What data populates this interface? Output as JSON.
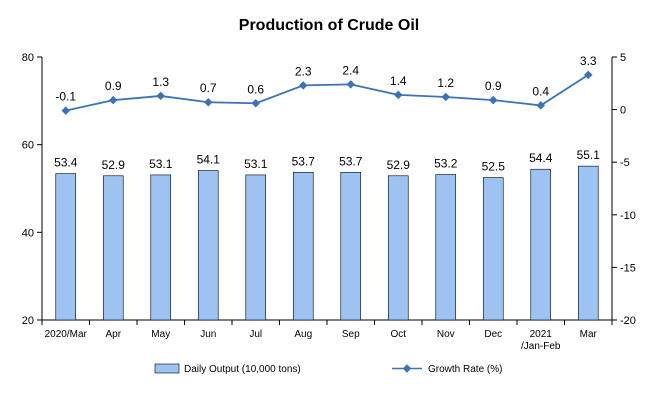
{
  "chart_data": {
    "type": "bar",
    "title": "Production of Crude Oil",
    "categories": [
      "2020/Mar",
      "Apr",
      "May",
      "Jun",
      "Jul",
      "Aug",
      "Sep",
      "Oct",
      "Nov",
      "Dec",
      "2021 /Jan-Feb",
      "Mar"
    ],
    "series": [
      {
        "name": "Daily Output (10,000 tons)",
        "type": "bar",
        "axis": "left",
        "color": "#9cc3f2",
        "values": [
          53.4,
          52.9,
          53.1,
          54.1,
          53.1,
          53.7,
          53.7,
          52.9,
          53.2,
          52.5,
          54.4,
          55.1
        ],
        "labels": [
          "53.4",
          "52.9",
          "53.1",
          "54.1",
          "53.1",
          "53.7",
          "53.7",
          "52.9",
          "53.2",
          "52.5",
          "54.4",
          "55.1"
        ]
      },
      {
        "name": "Growth Rate (%)",
        "type": "line",
        "axis": "right",
        "color": "#3d73b5",
        "values": [
          -0.1,
          0.9,
          1.3,
          0.7,
          0.6,
          2.3,
          2.4,
          1.4,
          1.2,
          0.9,
          0.4,
          3.3
        ],
        "labels": [
          "-0.1",
          "0.9",
          "1.3",
          "0.7",
          "0.6",
          "2.3",
          "2.4",
          "1.4",
          "1.2",
          "0.9",
          "0.4",
          "3.3"
        ]
      }
    ],
    "y_left": {
      "min": 20,
      "max": 80,
      "ticks": [
        "20",
        "40",
        "60",
        "80"
      ],
      "tick_values": [
        20,
        40,
        60,
        80
      ]
    },
    "y_right": {
      "min": -20,
      "max": 5,
      "ticks": [
        "-20",
        "-15",
        "-10",
        "-5",
        "0",
        "5"
      ],
      "tick_values": [
        -20,
        -15,
        -10,
        -5,
        0,
        5
      ]
    },
    "grid": false,
    "legend_position": "bottom"
  }
}
